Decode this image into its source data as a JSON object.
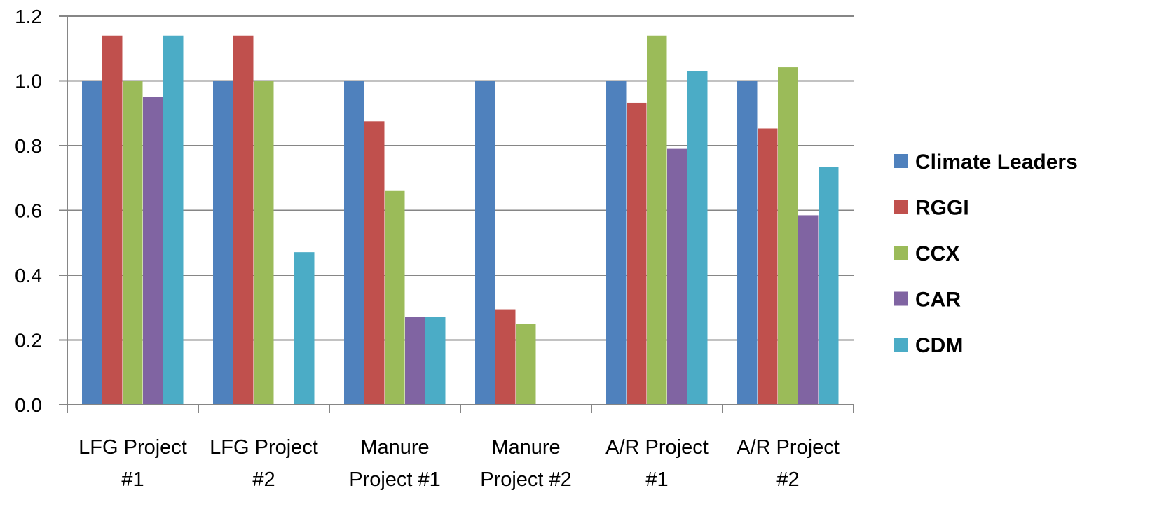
{
  "chart_data": {
    "type": "bar",
    "categories": [
      [
        "LFG Project",
        "#1"
      ],
      [
        "LFG Project",
        "#2"
      ],
      [
        "Manure",
        "Project #1"
      ],
      [
        "Manure",
        "Project #2"
      ],
      [
        "A/R Project",
        "#1"
      ],
      [
        "A/R Project",
        "#2"
      ]
    ],
    "series": [
      {
        "name": "Climate Leaders",
        "color": "#4F81BD",
        "values": [
          1.0,
          1.0,
          1.0,
          1.0,
          1.0,
          1.0
        ]
      },
      {
        "name": "RGGI",
        "color": "#C0504D",
        "values": [
          1.14,
          1.14,
          0.875,
          0.295,
          0.932,
          0.853
        ]
      },
      {
        "name": "CCX",
        "color": "#9BBB59",
        "values": [
          1.0,
          1.0,
          0.66,
          0.25,
          1.14,
          1.042
        ]
      },
      {
        "name": "CAR",
        "color": "#8064A2",
        "values": [
          0.95,
          null,
          0.272,
          null,
          0.79,
          0.585
        ]
      },
      {
        "name": "CDM",
        "color": "#4BACC6",
        "values": [
          1.14,
          0.471,
          0.272,
          null,
          1.03,
          0.733
        ]
      }
    ],
    "ylim": [
      0,
      1.2
    ],
    "yticks": [
      "0.0",
      "0.2",
      "0.4",
      "0.6",
      "0.8",
      "1.0",
      "1.2"
    ],
    "title": "",
    "xlabel": "",
    "ylabel": "",
    "grid": true,
    "legend_position": "right"
  }
}
